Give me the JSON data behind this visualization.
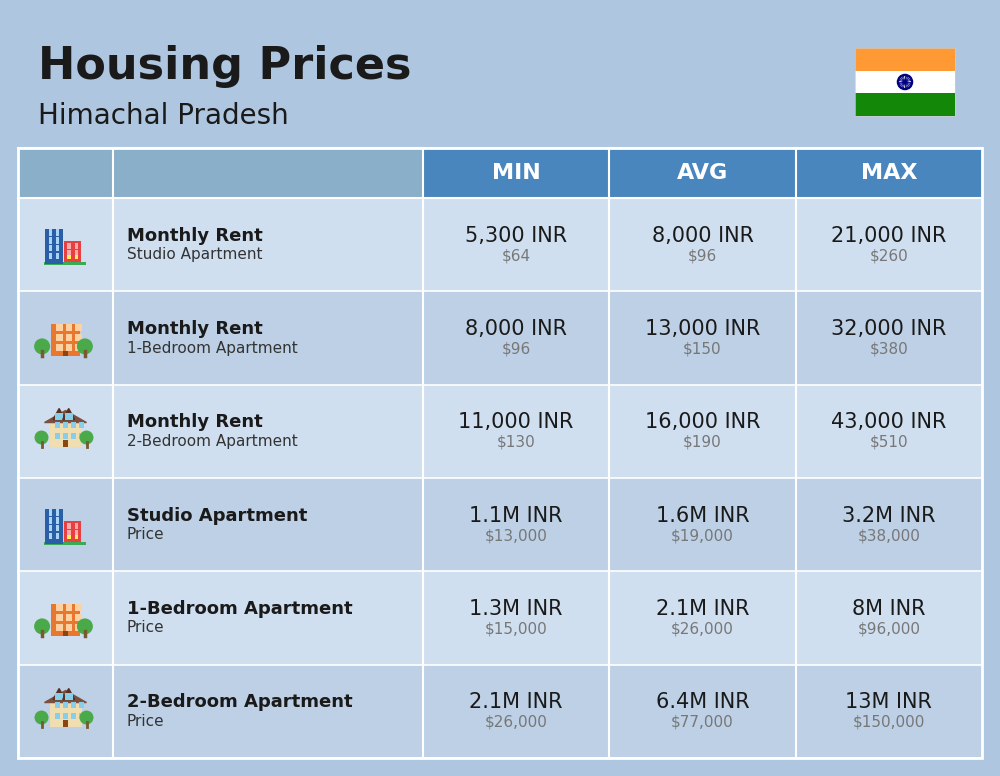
{
  "title": "Housing Prices",
  "subtitle": "Himachal Pradesh",
  "bg_color": "#aec6e0",
  "header_bg": "#4a86be",
  "header_text_color": "#ffffff",
  "header_labels": [
    "MIN",
    "AVG",
    "MAX"
  ],
  "row_colors": [
    "#d0dff0",
    "#bdd0e5"
  ],
  "rows": [
    {
      "bold_label": "Monthly Rent",
      "sub_label": "Studio Apartment",
      "min_inr": "5,300 INR",
      "min_usd": "$64",
      "avg_inr": "8,000 INR",
      "avg_usd": "$96",
      "max_inr": "21,000 INR",
      "max_usd": "$260",
      "icon_type": "studio_blue"
    },
    {
      "bold_label": "Monthly Rent",
      "sub_label": "1-Bedroom Apartment",
      "min_inr": "8,000 INR",
      "min_usd": "$96",
      "avg_inr": "13,000 INR",
      "avg_usd": "$150",
      "max_inr": "32,000 INR",
      "max_usd": "$380",
      "icon_type": "onebed_orange"
    },
    {
      "bold_label": "Monthly Rent",
      "sub_label": "2-Bedroom Apartment",
      "min_inr": "11,000 INR",
      "min_usd": "$130",
      "avg_inr": "16,000 INR",
      "avg_usd": "$190",
      "max_inr": "43,000 INR",
      "max_usd": "$510",
      "icon_type": "twobed_cream"
    },
    {
      "bold_label": "Studio Apartment",
      "sub_label": "Price",
      "min_inr": "1.1M INR",
      "min_usd": "$13,000",
      "avg_inr": "1.6M INR",
      "avg_usd": "$19,000",
      "max_inr": "3.2M INR",
      "max_usd": "$38,000",
      "icon_type": "studio_blue"
    },
    {
      "bold_label": "1-Bedroom Apartment",
      "sub_label": "Price",
      "min_inr": "1.3M INR",
      "min_usd": "$15,000",
      "avg_inr": "2.1M INR",
      "avg_usd": "$26,000",
      "max_inr": "8M INR",
      "max_usd": "$96,000",
      "icon_type": "onebed_orange"
    },
    {
      "bold_label": "2-Bedroom Apartment",
      "sub_label": "Price",
      "min_inr": "2.1M INR",
      "min_usd": "$26,000",
      "avg_inr": "6.4M INR",
      "avg_usd": "$77,000",
      "max_inr": "13M INR",
      "max_usd": "$150,000",
      "icon_type": "twobed_cream"
    }
  ],
  "flag_colors": [
    "#FF9933",
    "#FFFFFF",
    "#138808"
  ],
  "title_fontsize": 32,
  "subtitle_fontsize": 20,
  "header_fontsize": 16,
  "inr_fontsize": 15,
  "usd_fontsize": 11,
  "label_bold_fontsize": 13,
  "label_sub_fontsize": 11
}
